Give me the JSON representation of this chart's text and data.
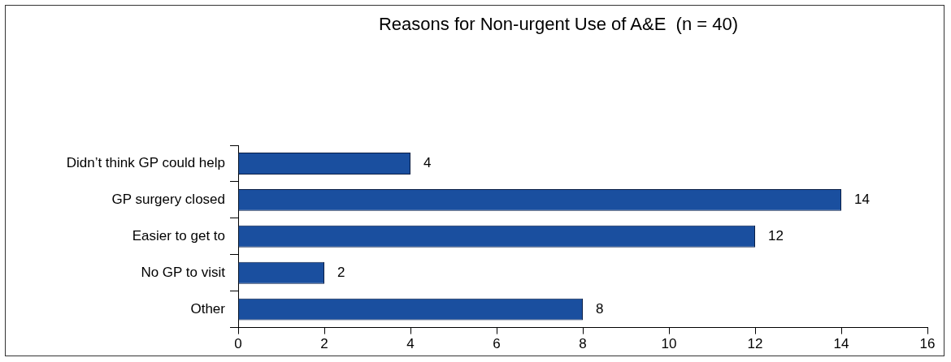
{
  "chart_data": {
    "type": "bar",
    "orientation": "horizontal",
    "title": "Reasons for Non-urgent Use of A&E  (n = 40)",
    "categories": [
      "Didn’t think GP could help",
      "GP surgery closed",
      "Easier to get to",
      "No GP to visit",
      "Other"
    ],
    "values": [
      4,
      14,
      12,
      2,
      8
    ],
    "color": "#1a4f9f",
    "xlim": [
      0,
      16
    ],
    "xticks": [
      0,
      2,
      4,
      6,
      8,
      10,
      12,
      14,
      16
    ],
    "data_labels": true,
    "legend": false
  }
}
